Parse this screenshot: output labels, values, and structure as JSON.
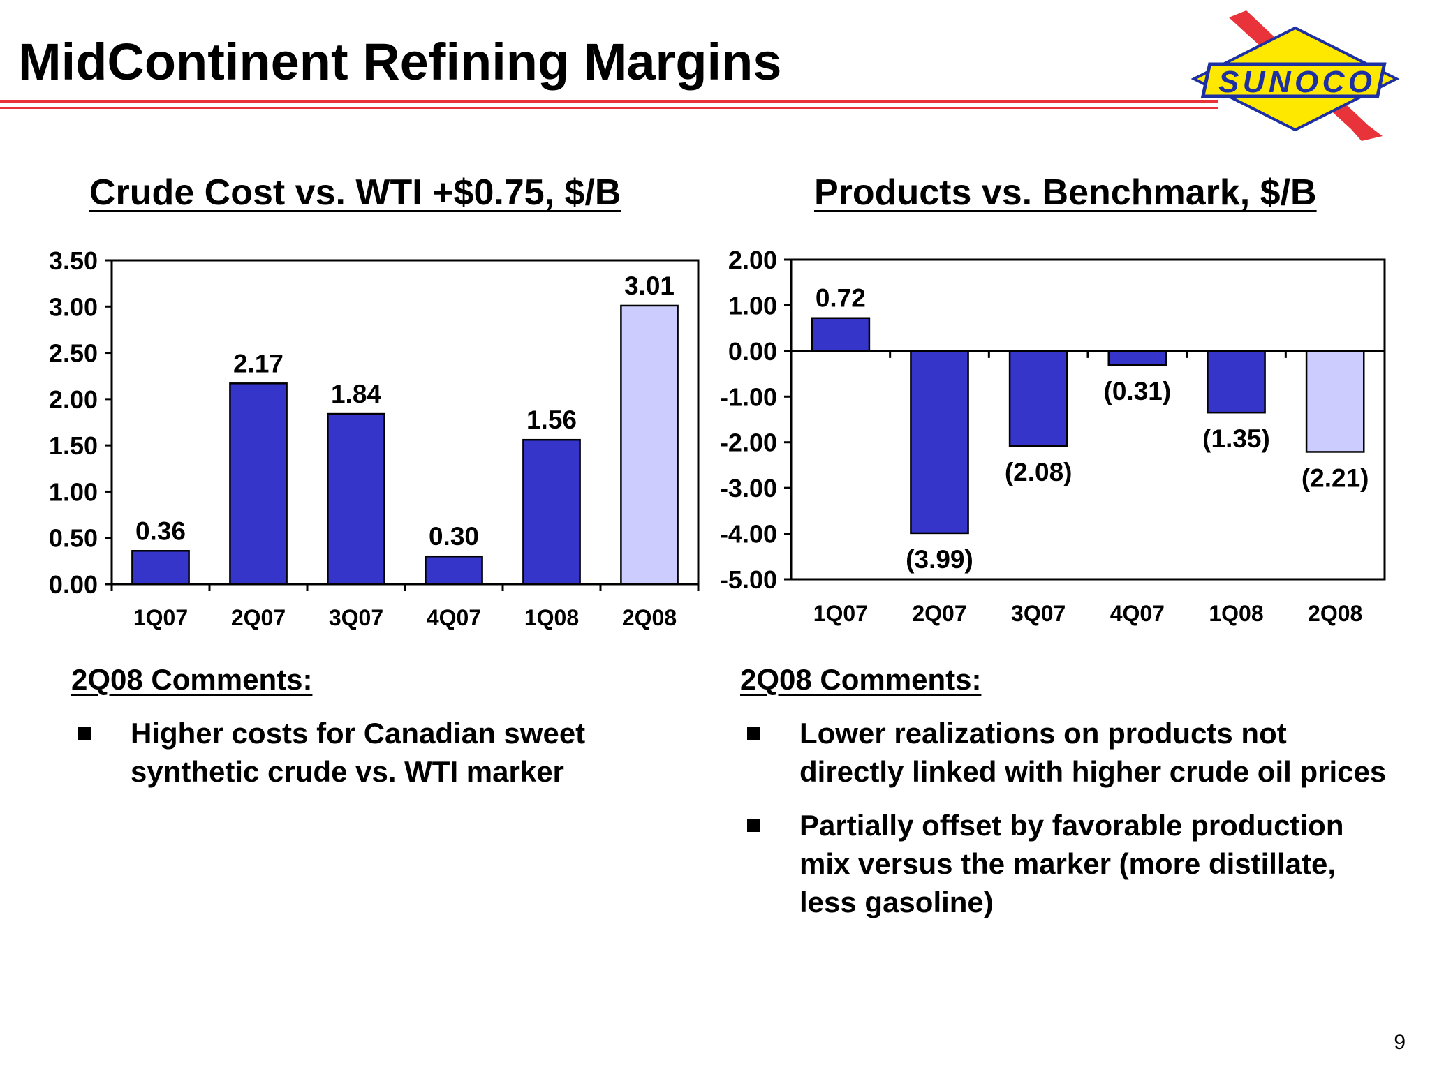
{
  "slide": {
    "title": "MidContinent Refining Margins",
    "page_number": "9",
    "logo_text": "SUNOCO"
  },
  "colors": {
    "bar": "#3535c9",
    "bar_highlight": "#ccccff",
    "rule": "#e8333a",
    "logo_yellow": "#ffe800",
    "logo_blue": "#1c2fa3",
    "logo_red": "#e8333a"
  },
  "chart_data": [
    {
      "type": "bar",
      "title": "Crude Cost vs. WTI +$0.75, $/B",
      "categories": [
        "1Q07",
        "2Q07",
        "3Q07",
        "4Q07",
        "1Q08",
        "2Q08"
      ],
      "values": [
        0.36,
        2.17,
        1.84,
        0.3,
        1.56,
        3.01
      ],
      "data_labels": [
        "0.36",
        "2.17",
        "1.84",
        "0.30",
        "1.56",
        "3.01"
      ],
      "highlight_index": 5,
      "ylim": [
        0,
        3.5
      ],
      "yticks": [
        "0.00",
        "0.50",
        "1.00",
        "1.50",
        "2.00",
        "2.50",
        "3.00",
        "3.50"
      ],
      "grid": false
    },
    {
      "type": "bar",
      "title": "Products vs. Benchmark, $/B",
      "categories": [
        "1Q07",
        "2Q07",
        "3Q07",
        "4Q07",
        "1Q08",
        "2Q08"
      ],
      "values": [
        0.72,
        -3.99,
        -2.08,
        -0.31,
        -1.35,
        -2.21
      ],
      "data_labels": [
        "0.72",
        "(3.99)",
        "(2.08)",
        "(0.31)",
        "(1.35)",
        "(2.21)"
      ],
      "highlight_index": 5,
      "ylim": [
        -5,
        2
      ],
      "yticks": [
        "-5.00",
        "-4.00",
        "-3.00",
        "-2.00",
        "-1.00",
        "0.00",
        "1.00",
        "2.00"
      ],
      "grid": false
    }
  ],
  "comments": [
    {
      "heading": "2Q08 Comments:",
      "bullets": [
        "Higher costs for Canadian sweet synthetic crude vs. WTI marker"
      ]
    },
    {
      "heading": "2Q08 Comments:",
      "bullets": [
        "Lower realizations on products not directly linked with higher crude oil prices",
        "Partially offset by favorable production mix versus the marker (more distillate, less gasoline)"
      ]
    }
  ]
}
